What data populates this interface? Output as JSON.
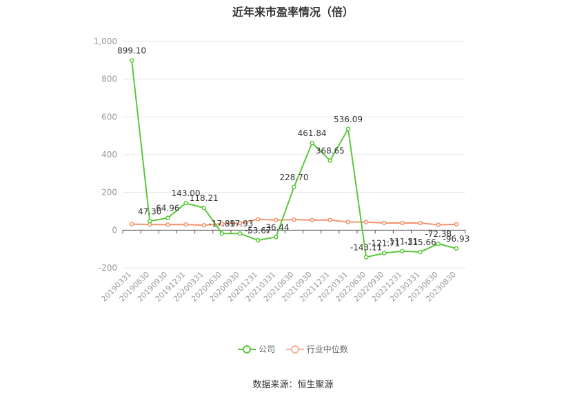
{
  "chart_data": {
    "type": "line",
    "title": "近年来市盈率情况（倍）",
    "categories": [
      "20190331",
      "20190630",
      "20190930",
      "20191231",
      "20200331",
      "20200630",
      "20200930",
      "20201231",
      "20210331",
      "20210630",
      "20210930",
      "20211231",
      "20220331",
      "20220630",
      "20220930",
      "20221231",
      "20230331",
      "20230630",
      "20230830"
    ],
    "series": [
      {
        "name": "公司",
        "color": "#5ac83a",
        "values": [
          899.1,
          47.3,
          64.96,
          143.0,
          118.21,
          -17.89,
          -17.93,
          -53.67,
          -36.44,
          228.7,
          461.84,
          368.65,
          536.09,
          -143.11,
          -121.71,
          -111.31,
          -115.66,
          -72.38,
          -96.93
        ],
        "labels": [
          "899.10",
          "47.30",
          "64.96",
          "143.00",
          "118.21",
          "-17.89",
          "-17.93",
          "-53.67",
          "-36.44",
          "228.70",
          "461.84",
          "368.65",
          "536.09",
          "-143.11",
          "-121.71",
          "-111.31",
          "-115.66",
          "-72.38",
          "-96.93"
        ]
      },
      {
        "name": "行业中位数",
        "color": "#f5936c",
        "values": [
          32,
          30,
          29,
          30,
          26,
          34,
          37,
          58,
          53,
          56,
          53,
          54,
          43,
          43,
          38,
          38,
          38,
          28,
          31
        ]
      }
    ],
    "yticks": [
      "1,000",
      "800",
      "600",
      "400",
      "200",
      "0",
      "-200"
    ],
    "ylim": [
      -200,
      1000
    ],
    "grid": true,
    "legend_position": "bottom"
  },
  "source": "数据来源：恒生聚源"
}
